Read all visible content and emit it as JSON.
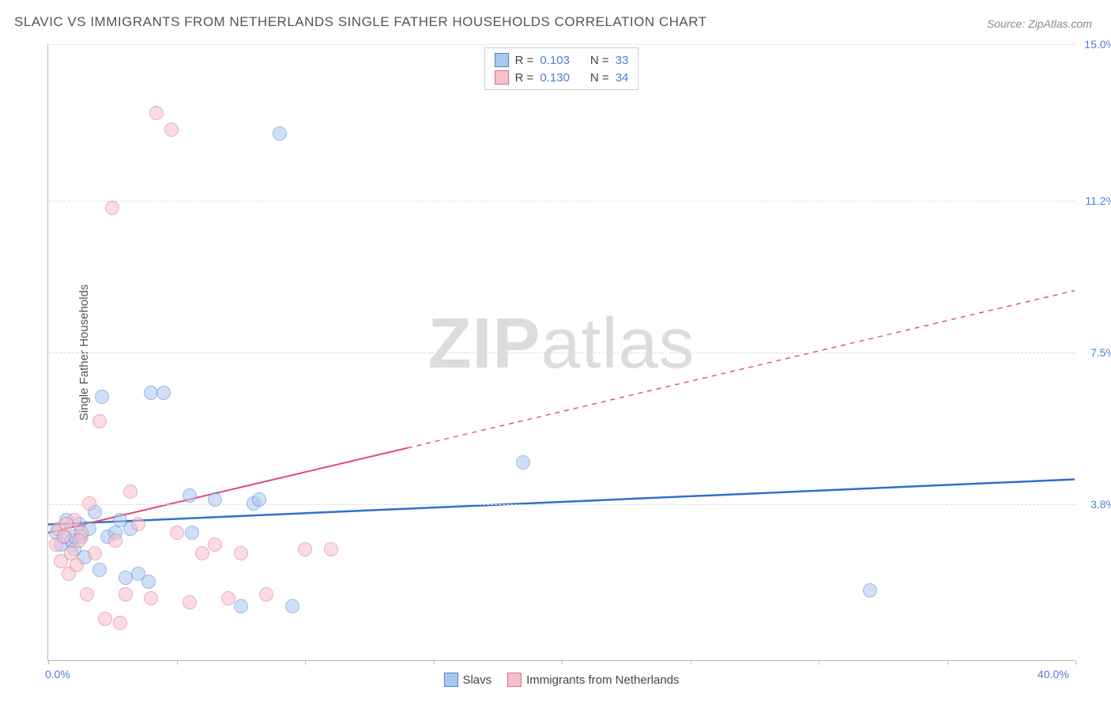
{
  "title": "SLAVIC VS IMMIGRANTS FROM NETHERLANDS SINGLE FATHER HOUSEHOLDS CORRELATION CHART",
  "source_label": "Source: ZipAtlas.com",
  "ylabel": "Single Father Households",
  "watermark": {
    "bold": "ZIP",
    "rest": "atlas"
  },
  "chart": {
    "type": "scatter",
    "xlim": [
      0,
      40
    ],
    "ylim": [
      0,
      15
    ],
    "x_ticks": [
      0,
      20,
      40
    ],
    "x_tick_labels": [
      "0.0%",
      "",
      "40.0%"
    ],
    "x_tick_minor": [
      5,
      10,
      15,
      25,
      30,
      35
    ],
    "y_grid": [
      3.8,
      7.5,
      11.2,
      15.0
    ],
    "y_grid_labels": [
      "3.8%",
      "7.5%",
      "11.2%",
      "15.0%"
    ],
    "background_color": "#ffffff",
    "grid_color": "#dddddd",
    "axis_color": "#bbbbbb",
    "tick_label_color": "#4a7fd6",
    "marker_radius": 9,
    "marker_opacity": 0.55,
    "series": [
      {
        "key": "slavs",
        "name": "Slavs",
        "color_fill": "#a9c8ef",
        "color_stroke": "#4a7fd6",
        "r_value": "0.103",
        "n_value": "33",
        "trend": {
          "x1": 0,
          "y1": 3.3,
          "x2": 40,
          "y2": 4.4,
          "solid_until_x": 40,
          "color": "#2f6fd0",
          "width": 2.5
        },
        "points": [
          [
            0.3,
            3.1
          ],
          [
            0.5,
            2.8
          ],
          [
            0.7,
            3.4
          ],
          [
            0.9,
            2.9
          ],
          [
            1.0,
            3.0
          ],
          [
            1.2,
            3.3
          ],
          [
            1.4,
            2.5
          ],
          [
            1.6,
            3.2
          ],
          [
            1.8,
            3.6
          ],
          [
            2.0,
            2.2
          ],
          [
            2.1,
            6.4
          ],
          [
            2.3,
            3.0
          ],
          [
            2.6,
            3.1
          ],
          [
            3.0,
            2.0
          ],
          [
            3.2,
            3.2
          ],
          [
            3.5,
            2.1
          ],
          [
            3.9,
            1.9
          ],
          [
            4.0,
            6.5
          ],
          [
            4.5,
            6.5
          ],
          [
            5.5,
            4.0
          ],
          [
            5.6,
            3.1
          ],
          [
            6.5,
            3.9
          ],
          [
            7.5,
            1.3
          ],
          [
            8.0,
            3.8
          ],
          [
            8.2,
            3.9
          ],
          [
            9.0,
            12.8
          ],
          [
            9.5,
            1.3
          ],
          [
            18.5,
            4.8
          ],
          [
            32.0,
            1.7
          ],
          [
            1.0,
            2.7
          ],
          [
            1.3,
            3.0
          ],
          [
            2.8,
            3.4
          ],
          [
            0.6,
            3.0
          ]
        ]
      },
      {
        "key": "netherlands",
        "name": "Immigrants from Netherlands",
        "color_fill": "#f6c0cc",
        "color_stroke": "#e06b8a",
        "r_value": "0.130",
        "n_value": "34",
        "trend": {
          "x1": 0,
          "y1": 3.1,
          "x2": 40,
          "y2": 9.0,
          "solid_until_x": 14,
          "color": "#e04b77",
          "width": 2
        },
        "points": [
          [
            0.3,
            2.8
          ],
          [
            0.4,
            3.2
          ],
          [
            0.5,
            2.4
          ],
          [
            0.6,
            3.0
          ],
          [
            0.8,
            2.1
          ],
          [
            1.0,
            3.4
          ],
          [
            1.1,
            2.3
          ],
          [
            1.3,
            3.1
          ],
          [
            1.5,
            1.6
          ],
          [
            1.6,
            3.8
          ],
          [
            1.8,
            2.6
          ],
          [
            2.0,
            5.8
          ],
          [
            2.2,
            1.0
          ],
          [
            2.5,
            11.0
          ],
          [
            2.6,
            2.9
          ],
          [
            2.8,
            0.9
          ],
          [
            3.0,
            1.6
          ],
          [
            3.2,
            4.1
          ],
          [
            3.5,
            3.3
          ],
          [
            4.0,
            1.5
          ],
          [
            4.2,
            13.3
          ],
          [
            4.8,
            12.9
          ],
          [
            5.0,
            3.1
          ],
          [
            5.5,
            1.4
          ],
          [
            6.0,
            2.6
          ],
          [
            6.5,
            2.8
          ],
          [
            7.0,
            1.5
          ],
          [
            7.5,
            2.6
          ],
          [
            8.5,
            1.6
          ],
          [
            10.0,
            2.7
          ],
          [
            11.0,
            2.7
          ],
          [
            1.2,
            2.9
          ],
          [
            0.9,
            2.6
          ],
          [
            0.7,
            3.3
          ]
        ]
      }
    ],
    "legend_top": [
      {
        "series": "slavs",
        "r_label": "R =",
        "n_label": "N ="
      },
      {
        "series": "netherlands",
        "r_label": "R =",
        "n_label": "N ="
      }
    ]
  }
}
